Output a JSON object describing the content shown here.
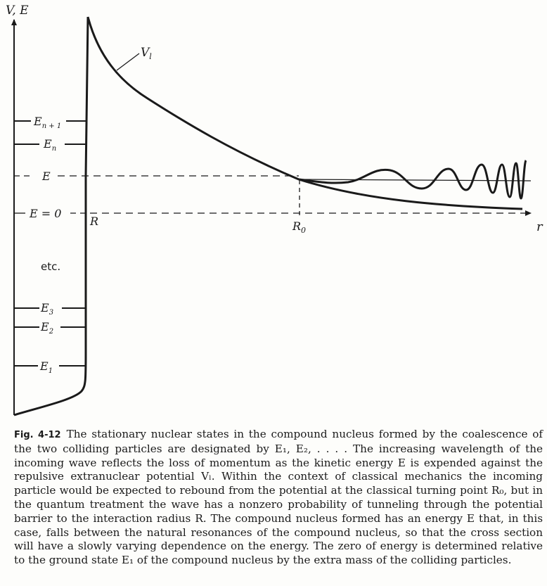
{
  "figure": {
    "axis_y_label": "V, E",
    "axis_x_label": "r",
    "potential_label": "V",
    "potential_label_sub": "l",
    "levels": {
      "en1": {
        "text": "E",
        "sub": "n + 1"
      },
      "en": {
        "text": "E",
        "sub": "n"
      },
      "e": {
        "text": "E"
      },
      "ezero": {
        "text": "E = 0"
      },
      "e3": {
        "text": "E",
        "sub": "3"
      },
      "e2": {
        "text": "E",
        "sub": "2"
      },
      "e1": {
        "text": "E",
        "sub": "1"
      }
    },
    "r_label": "R",
    "r0_label": "R",
    "r0_sub": "0",
    "etc_label": "etc."
  },
  "caption": {
    "label": "Fig. 4-12",
    "text": "The stationary nuclear states in the compound nucleus formed by the coalescence of the two colliding particles are designated by E₁, E₂, . . . .  The increasing wavelength of the incoming wave reflects the loss of momentum as the kinetic energy E is expended against the repulsive extranuclear potential Vₗ.  Within the context of classical mechanics the incoming particle would be expected to rebound from the potential at the classical turning point R₀, but in the quantum treatment the wave has a nonzero probability of tunneling through the potential barrier to the interaction radius R.  The compound nucleus formed has an energy E that, in this case, falls between the natural resonances of the compound nucleus, so that the cross section will have a slowly varying dependence on the energy.  The zero of energy is determined relative to the ground state E₁ of the compound nucleus by the extra mass of the colliding particles."
  }
}
